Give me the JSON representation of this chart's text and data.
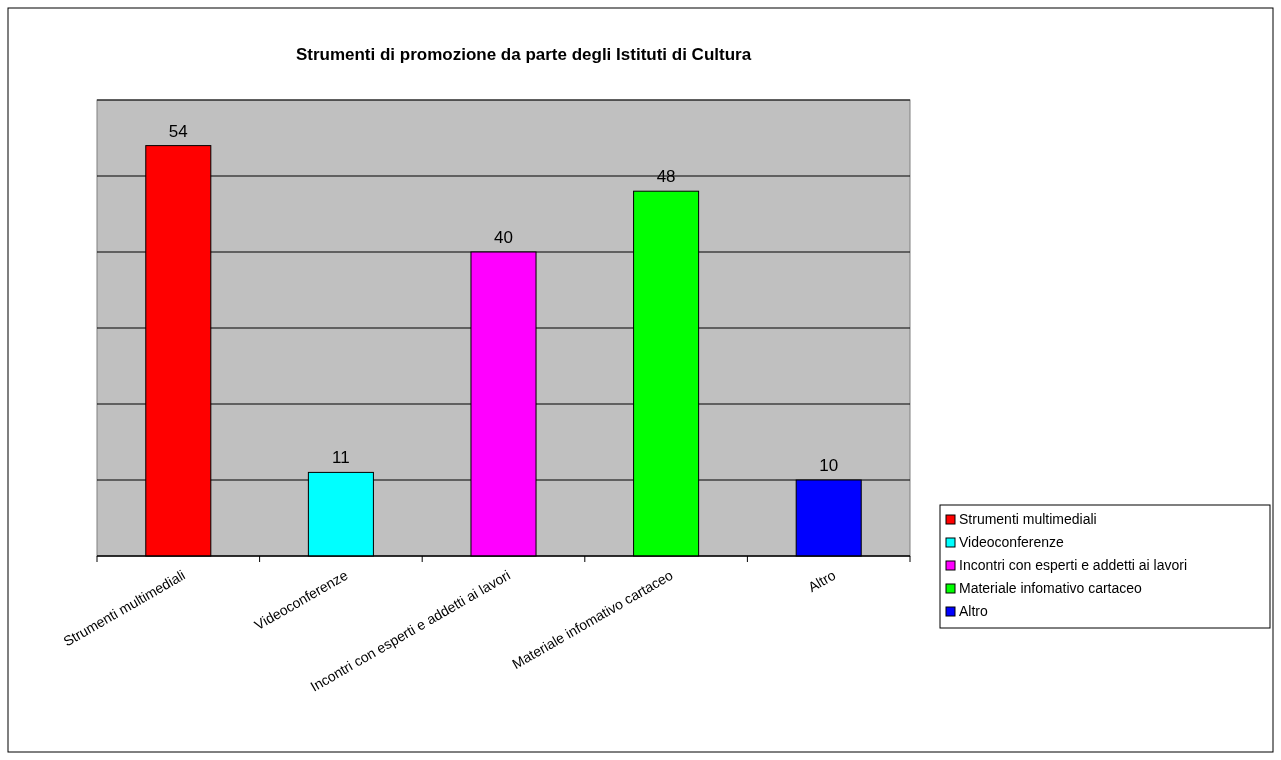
{
  "chart_data": {
    "type": "bar",
    "title": "Strumenti di promozione da parte degli Istituti di Cultura",
    "categories": [
      "Strumenti multimediali",
      "Videoconferenze",
      "Incontri con esperti e addetti ai lavori",
      "Materiale infomativo cartaceo",
      "Altro"
    ],
    "series": [
      {
        "name": "Strumenti multimediali",
        "color": "#ff0000",
        "values": [
          54,
          null,
          null,
          null,
          null
        ]
      },
      {
        "name": "Videoconferenze",
        "color": "#00ffff",
        "values": [
          null,
          11,
          null,
          null,
          null
        ]
      },
      {
        "name": "Incontri con esperti e addetti ai lavori",
        "color": "#ff00ff",
        "values": [
          null,
          null,
          40,
          null,
          null
        ]
      },
      {
        "name": "Materiale infomativo cartaceo",
        "color": "#00ff00",
        "values": [
          null,
          null,
          null,
          48,
          null
        ]
      },
      {
        "name": "Altro",
        "color": "#0000ff",
        "values": [
          null,
          null,
          null,
          null,
          10
        ]
      }
    ],
    "ylim": [
      0,
      60
    ],
    "yticks": [
      {
        "value": 0,
        "label": null
      },
      {
        "value": 10,
        "label": null
      },
      {
        "value": 20,
        "label": null
      },
      {
        "value": 30,
        "label": null
      },
      {
        "value": 40,
        "label": null
      },
      {
        "value": 50,
        "label": null
      },
      {
        "value": 60,
        "label": null
      }
    ],
    "tick_labels": "x",
    "grid": true,
    "data_labels": true,
    "legend": "right"
  }
}
